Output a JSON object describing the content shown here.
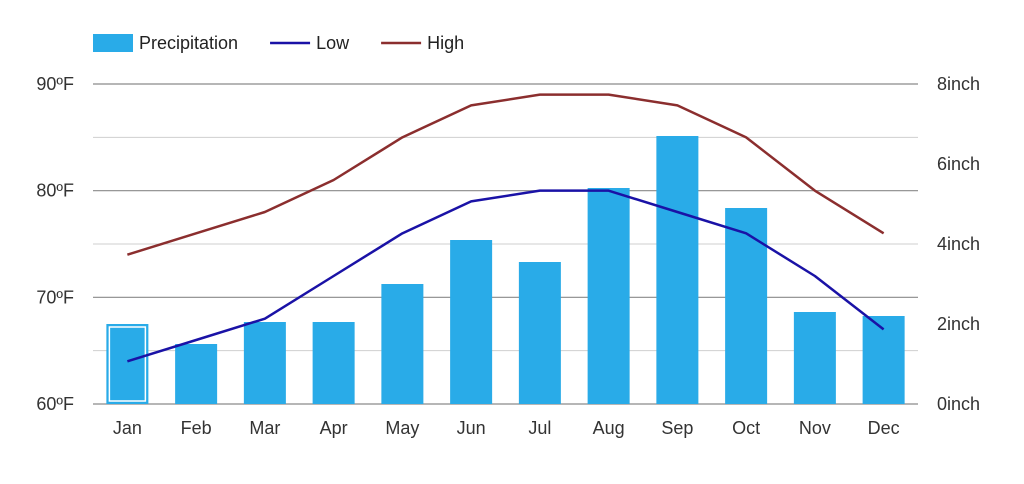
{
  "chart_data": {
    "type": "bar",
    "categories": [
      "Jan",
      "Feb",
      "Mar",
      "Apr",
      "May",
      "Jun",
      "Jul",
      "Aug",
      "Sep",
      "Oct",
      "Nov",
      "Dec"
    ],
    "series": [
      {
        "name": "Precipitation",
        "type": "bar",
        "axis": "right",
        "color": "#29abe8",
        "values": [
          2.0,
          1.5,
          2.05,
          2.05,
          3.0,
          4.1,
          3.55,
          5.4,
          6.7,
          4.9,
          2.3,
          2.2
        ]
      },
      {
        "name": "Low",
        "type": "line",
        "axis": "left",
        "color": "#1a12a6",
        "values": [
          64,
          66,
          68,
          72,
          76,
          79,
          80,
          80,
          78,
          76,
          72,
          67
        ]
      },
      {
        "name": "High",
        "type": "line",
        "axis": "left",
        "color": "#8b2e2e",
        "values": [
          74,
          76,
          78,
          81,
          85,
          88,
          89,
          89,
          88,
          85,
          80,
          76
        ]
      }
    ],
    "left_axis": {
      "ticks": [
        "60ºF",
        "70ºF",
        "80ºF",
        "90ºF"
      ],
      "ylim": [
        60,
        90
      ]
    },
    "right_axis": {
      "ticks": [
        "0inch",
        "2inch",
        "4inch",
        "6inch",
        "8inch"
      ],
      "ylim": [
        0,
        8
      ]
    },
    "highlighted_category": "Jan",
    "legend_position": "top-left",
    "grid": true
  }
}
